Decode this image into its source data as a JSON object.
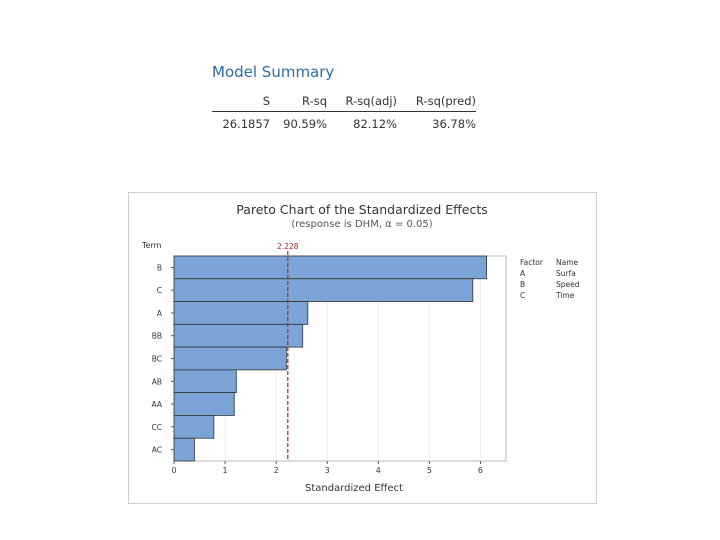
{
  "model_summary": {
    "title": "Model Summary",
    "headers": [
      "S",
      "R-sq",
      "R-sq(adj)",
      "R-sq(pred)"
    ],
    "values": [
      "26.1857",
      "90.59%",
      "82.12%",
      "36.78%"
    ]
  },
  "colors": {
    "bar_fill": "#7ba3d6",
    "bar_stroke": "#333333",
    "ref_line": "#b22222",
    "title_blue": "#2c6ea3"
  },
  "chart_data": {
    "type": "bar",
    "orientation": "horizontal",
    "title": "Pareto Chart of the Standardized Effects",
    "subtitle": "(response is DHM, α = 0.05)",
    "xlabel": "Standardized Effect",
    "ylabel": "Term",
    "xlim": [
      0,
      6.5
    ],
    "xticks": [
      0,
      1,
      2,
      3,
      4,
      5,
      6
    ],
    "grid": true,
    "categories": [
      "B",
      "C",
      "A",
      "BB",
      "BC",
      "AB",
      "AA",
      "CC",
      "AC"
    ],
    "values": [
      6.12,
      5.85,
      2.62,
      2.52,
      2.2,
      1.22,
      1.18,
      0.78,
      0.4
    ],
    "reference_line": {
      "value": 2.228,
      "label": "2.228"
    },
    "legend": {
      "placement": "right",
      "headers": [
        "Factor",
        "Name"
      ],
      "rows": [
        [
          "A",
          "Surfa"
        ],
        [
          "B",
          "Speed"
        ],
        [
          "C",
          "Time"
        ]
      ]
    }
  }
}
